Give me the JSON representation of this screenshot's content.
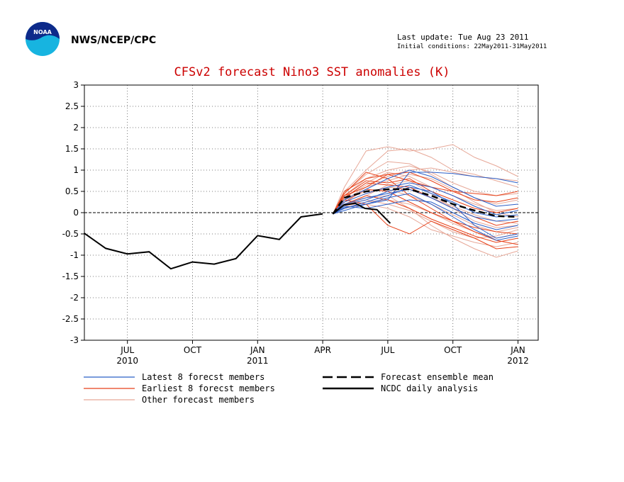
{
  "header": {
    "agency": "NWS/NCEP/CPC",
    "last_update": "Last update: Tue Aug 23 2011",
    "initial_conditions": "Initial conditions: 22May2011-31May2011",
    "logo_text": "NOAA"
  },
  "colors": {
    "latest": "#2b5fc8",
    "earliest": "#e8421a",
    "other": "#e7a898",
    "mean": "#000000",
    "analysis": "#000000",
    "title": "#cc0000"
  },
  "chart_data": {
    "type": "line",
    "title": "CFSv2 forecast Nino3 SST anomalies (K)",
    "ylim": [
      -3,
      3
    ],
    "yticks": [
      "3",
      "2.5",
      "2",
      "1.5",
      "1",
      "0.5",
      "0",
      "-0.5",
      "-1",
      "-1.5",
      "-2",
      "-2.5",
      "-3"
    ],
    "x_range_months": [
      "2010-04",
      "2012-02"
    ],
    "xticks": [
      {
        "month": "JUL",
        "year": "2010",
        "index": 3
      },
      {
        "month": "OCT",
        "year": "",
        "index": 6
      },
      {
        "month": "JAN",
        "year": "2011",
        "index": 9
      },
      {
        "month": "APR",
        "year": "",
        "index": 12
      },
      {
        "month": "JUL",
        "year": "",
        "index": 15
      },
      {
        "month": "OCT",
        "year": "",
        "index": 18
      },
      {
        "month": "JAN",
        "year": "2012",
        "index": 21
      }
    ],
    "grid": true,
    "zero_line": true,
    "legend": [
      {
        "label": "Latest 8 forecst members",
        "key": "latest"
      },
      {
        "label": "Earliest 8 forecst members",
        "key": "earliest"
      },
      {
        "label": "Other forecast members",
        "key": "other"
      },
      {
        "label": "Forecast ensemble mean",
        "key": "mean"
      },
      {
        "label": "NCDC daily analysis",
        "key": "analysis"
      }
    ],
    "analysis_monthly": {
      "name": "NCDC daily analysis",
      "x": [
        "2010-06",
        "2010-07",
        "2010-08",
        "2010-09",
        "2010-10",
        "2010-11",
        "2010-12",
        "2011-01",
        "2011-02",
        "2011-03",
        "2011-04",
        "2011-05"
      ],
      "y": [
        -0.48,
        -0.84,
        -0.97,
        -0.92,
        -1.32,
        -1.16,
        -1.21,
        -1.08,
        -0.54,
        -0.63,
        -0.1,
        -0.03
      ]
    },
    "analysis_daily": {
      "x": [
        "2011-05-31",
        "2011-06-15",
        "2011-07-01",
        "2011-07-15",
        "2011-08-01",
        "2011-08-20"
      ],
      "y": [
        -0.03,
        0.18,
        0.22,
        0.1,
        0.07,
        -0.25
      ]
    },
    "ensemble_mean": {
      "name": "Forecast ensemble mean",
      "x": [
        "2011-05-31",
        "2011-06",
        "2011-07",
        "2011-08",
        "2011-09",
        "2011-10",
        "2011-11",
        "2011-12",
        "2012-01",
        "2012-02"
      ],
      "y": [
        -0.03,
        0.35,
        0.5,
        0.55,
        0.55,
        0.4,
        0.2,
        0.05,
        -0.08,
        -0.1
      ]
    },
    "members_latest": [
      {
        "x": [
          "2011-05-31",
          "2011-06",
          "2011-07",
          "2011-08",
          "2011-09",
          "2011-10",
          "2011-11",
          "2011-12",
          "2012-01",
          "2012-02"
        ],
        "y": [
          -0.03,
          0.12,
          0.2,
          0.3,
          0.95,
          0.95,
          0.92,
          0.85,
          0.8,
          0.7
        ]
      },
      {
        "x": [
          "2011-05-31",
          "2011-06",
          "2011-07",
          "2011-08",
          "2011-09",
          "2011-10",
          "2011-11",
          "2011-12",
          "2012-01",
          "2012-02"
        ],
        "y": [
          -0.03,
          0.1,
          0.25,
          0.4,
          0.6,
          0.5,
          0.2,
          -0.3,
          -0.6,
          -0.5
        ]
      },
      {
        "x": [
          "2011-05-31",
          "2011-06",
          "2011-07",
          "2011-08",
          "2011-09",
          "2011-10",
          "2011-11",
          "2011-12",
          "2012-01",
          "2012-02"
        ],
        "y": [
          -0.03,
          0.2,
          0.35,
          0.45,
          0.55,
          0.35,
          0.1,
          -0.1,
          -0.2,
          -0.15
        ]
      },
      {
        "x": [
          "2011-05-31",
          "2011-06",
          "2011-07",
          "2011-08",
          "2011-09",
          "2011-10",
          "2011-11",
          "2011-12",
          "2012-01",
          "2012-02"
        ],
        "y": [
          -0.03,
          0.15,
          0.1,
          0.2,
          0.3,
          0.25,
          0.0,
          -0.25,
          -0.4,
          -0.3
        ]
      },
      {
        "x": [
          "2011-05-31",
          "2011-06",
          "2011-07",
          "2011-08",
          "2011-09",
          "2011-10",
          "2011-11",
          "2011-12",
          "2012-01",
          "2012-02"
        ],
        "y": [
          -0.03,
          0.25,
          0.45,
          0.6,
          0.7,
          0.6,
          0.4,
          0.15,
          -0.05,
          0.05
        ]
      },
      {
        "x": [
          "2011-05-31",
          "2011-06",
          "2011-07",
          "2011-08",
          "2011-09",
          "2011-10",
          "2011-11",
          "2011-12",
          "2012-01",
          "2012-02"
        ],
        "y": [
          -0.03,
          0.05,
          0.2,
          0.35,
          0.45,
          0.2,
          -0.1,
          -0.4,
          -0.65,
          -0.55
        ]
      },
      {
        "x": [
          "2011-05-31",
          "2011-06",
          "2011-07",
          "2011-08",
          "2011-09",
          "2011-10",
          "2011-11",
          "2011-12",
          "2012-01",
          "2012-02"
        ],
        "y": [
          -0.03,
          0.3,
          0.55,
          0.8,
          1.0,
          0.85,
          0.6,
          0.35,
          0.15,
          0.2
        ]
      },
      {
        "x": [
          "2011-05-31",
          "2011-06",
          "2011-07",
          "2011-08",
          "2011-09",
          "2011-10",
          "2011-11",
          "2011-12",
          "2012-01",
          "2012-02"
        ],
        "y": [
          -0.03,
          0.18,
          0.3,
          0.5,
          0.65,
          0.45,
          0.25,
          0.0,
          -0.1,
          -0.05
        ]
      }
    ],
    "members_earliest": [
      {
        "x": [
          "2011-05-31",
          "2011-06",
          "2011-07",
          "2011-08",
          "2011-09",
          "2011-10",
          "2011-11",
          "2011-12",
          "2012-01",
          "2012-02"
        ],
        "y": [
          -0.03,
          0.45,
          0.95,
          0.8,
          0.4,
          0.1,
          -0.2,
          -0.45,
          -0.65,
          -0.75
        ]
      },
      {
        "x": [
          "2011-05-31",
          "2011-06",
          "2011-07",
          "2011-08",
          "2011-09",
          "2011-10",
          "2011-11",
          "2011-12",
          "2012-01",
          "2012-02"
        ],
        "y": [
          -0.03,
          0.4,
          0.6,
          0.9,
          0.75,
          0.6,
          0.5,
          0.45,
          0.4,
          0.5
        ]
      },
      {
        "x": [
          "2011-05-31",
          "2011-06",
          "2011-07",
          "2011-08",
          "2011-09",
          "2011-10",
          "2011-11",
          "2011-12",
          "2012-01",
          "2012-02"
        ],
        "y": [
          -0.03,
          0.3,
          0.2,
          -0.3,
          -0.5,
          -0.2,
          -0.4,
          -0.6,
          -0.85,
          -0.8
        ]
      },
      {
        "x": [
          "2011-05-31",
          "2011-06",
          "2011-07",
          "2011-08",
          "2011-09",
          "2011-10",
          "2011-11",
          "2011-12",
          "2012-01",
          "2012-02"
        ],
        "y": [
          -0.03,
          0.35,
          0.7,
          0.65,
          0.6,
          0.35,
          0.1,
          -0.1,
          -0.3,
          -0.2
        ]
      },
      {
        "x": [
          "2011-05-31",
          "2011-06",
          "2011-07",
          "2011-08",
          "2011-09",
          "2011-10",
          "2011-11",
          "2011-12",
          "2012-01",
          "2012-02"
        ],
        "y": [
          -0.03,
          0.2,
          0.4,
          0.3,
          0.1,
          -0.15,
          -0.35,
          -0.55,
          -0.7,
          -0.6
        ]
      },
      {
        "x": [
          "2011-05-31",
          "2011-06",
          "2011-07",
          "2011-08",
          "2011-09",
          "2011-10",
          "2011-11",
          "2011-12",
          "2012-01",
          "2012-02"
        ],
        "y": [
          -0.03,
          0.5,
          0.8,
          0.9,
          0.95,
          0.75,
          0.5,
          0.3,
          0.25,
          0.35
        ]
      },
      {
        "x": [
          "2011-05-31",
          "2011-06",
          "2011-07",
          "2011-08",
          "2011-09",
          "2011-10",
          "2011-11",
          "2011-12",
          "2012-01",
          "2012-02"
        ],
        "y": [
          -0.03,
          0.25,
          0.55,
          0.5,
          0.25,
          0.0,
          -0.2,
          -0.35,
          -0.45,
          -0.5
        ]
      },
      {
        "x": [
          "2011-05-31",
          "2011-06",
          "2011-07",
          "2011-08",
          "2011-09",
          "2011-10",
          "2011-11",
          "2011-12",
          "2012-01",
          "2012-02"
        ],
        "y": [
          -0.03,
          0.4,
          0.75,
          0.7,
          0.8,
          0.5,
          0.3,
          0.1,
          0.0,
          0.1
        ]
      }
    ],
    "members_other": [
      {
        "x": [
          "2011-05-31",
          "2011-06",
          "2011-07",
          "2011-08",
          "2011-09",
          "2011-10",
          "2011-11",
          "2011-12",
          "2012-01",
          "2012-02"
        ],
        "y": [
          -0.03,
          0.6,
          1.45,
          1.55,
          1.45,
          1.5,
          1.6,
          1.3,
          1.1,
          0.85
        ]
      },
      {
        "x": [
          "2011-05-31",
          "2011-06",
          "2011-07",
          "2011-08",
          "2011-09",
          "2011-10",
          "2011-11",
          "2011-12",
          "2012-01",
          "2012-02"
        ],
        "y": [
          -0.03,
          0.5,
          1.0,
          1.45,
          1.5,
          1.3,
          1.0,
          0.9,
          0.75,
          0.6
        ]
      },
      {
        "x": [
          "2011-05-31",
          "2011-06",
          "2011-07",
          "2011-08",
          "2011-09",
          "2011-10",
          "2011-11",
          "2011-12",
          "2012-01",
          "2012-02"
        ],
        "y": [
          -0.03,
          0.3,
          0.6,
          0.75,
          0.9,
          0.8,
          0.55,
          0.25,
          0.0,
          -0.1
        ]
      },
      {
        "x": [
          "2011-05-31",
          "2011-06",
          "2011-07",
          "2011-08",
          "2011-09",
          "2011-10",
          "2011-11",
          "2011-12",
          "2012-01",
          "2012-02"
        ],
        "y": [
          -0.03,
          0.2,
          0.35,
          0.4,
          0.1,
          -0.3,
          -0.6,
          -0.85,
          -1.05,
          -0.9
        ]
      },
      {
        "x": [
          "2011-05-31",
          "2011-06",
          "2011-07",
          "2011-08",
          "2011-09",
          "2011-10",
          "2011-11",
          "2011-12",
          "2012-01",
          "2012-02"
        ],
        "y": [
          -0.03,
          0.15,
          0.25,
          0.3,
          0.2,
          0.0,
          -0.25,
          -0.45,
          -0.6,
          -0.5
        ]
      },
      {
        "x": [
          "2011-05-31",
          "2011-06",
          "2011-07",
          "2011-08",
          "2011-09",
          "2011-10",
          "2011-11",
          "2011-12",
          "2012-01",
          "2012-02"
        ],
        "y": [
          -0.03,
          0.35,
          0.65,
          0.85,
          1.0,
          1.05,
          0.95,
          0.85,
          0.8,
          0.75
        ]
      },
      {
        "x": [
          "2011-05-31",
          "2011-06",
          "2011-07",
          "2011-08",
          "2011-09",
          "2011-10",
          "2011-11",
          "2011-12",
          "2012-01",
          "2012-02"
        ],
        "y": [
          -0.03,
          0.1,
          0.2,
          0.1,
          -0.1,
          -0.4,
          -0.55,
          -0.7,
          -0.8,
          -0.7
        ]
      },
      {
        "x": [
          "2011-05-31",
          "2011-06",
          "2011-07",
          "2011-08",
          "2011-09",
          "2011-10",
          "2011-11",
          "2011-12",
          "2012-01",
          "2012-02"
        ],
        "y": [
          -0.03,
          0.4,
          0.8,
          1.0,
          1.1,
          0.95,
          0.7,
          0.5,
          0.4,
          0.45
        ]
      },
      {
        "x": [
          "2011-05-31",
          "2011-06",
          "2011-07",
          "2011-08",
          "2011-09",
          "2011-10",
          "2011-11",
          "2011-12",
          "2012-01",
          "2012-02"
        ],
        "y": [
          -0.03,
          0.25,
          0.45,
          0.6,
          0.55,
          0.35,
          0.15,
          -0.05,
          -0.2,
          -0.25
        ]
      },
      {
        "x": [
          "2011-05-31",
          "2011-06",
          "2011-07",
          "2011-08",
          "2011-09",
          "2011-10",
          "2011-11",
          "2011-12",
          "2012-01",
          "2012-02"
        ],
        "y": [
          -0.03,
          0.3,
          0.5,
          0.55,
          0.4,
          0.2,
          -0.05,
          -0.3,
          -0.45,
          -0.35
        ]
      },
      {
        "x": [
          "2011-05-31",
          "2011-06",
          "2011-07",
          "2011-08",
          "2011-09",
          "2011-10",
          "2011-11",
          "2011-12",
          "2012-01",
          "2012-02"
        ],
        "y": [
          -0.03,
          0.45,
          0.9,
          1.2,
          1.15,
          0.9,
          0.6,
          0.35,
          0.2,
          0.3
        ]
      },
      {
        "x": [
          "2011-05-31",
          "2011-06",
          "2011-07",
          "2011-08",
          "2011-09",
          "2011-10",
          "2011-11",
          "2011-12",
          "2012-01",
          "2012-02"
        ],
        "y": [
          -0.03,
          0.2,
          0.3,
          0.2,
          0.05,
          -0.2,
          -0.45,
          -0.6,
          -0.55,
          -0.4
        ]
      },
      {
        "x": [
          "2011-05-31",
          "2011-06",
          "2011-07",
          "2011-08",
          "2011-09",
          "2011-10",
          "2011-11",
          "2011-12",
          "2012-01",
          "2012-02"
        ],
        "y": [
          -0.03,
          0.35,
          0.7,
          0.95,
          0.85,
          0.6,
          0.4,
          0.2,
          0.05,
          0.1
        ]
      },
      {
        "x": [
          "2011-05-31",
          "2011-06",
          "2011-07",
          "2011-08",
          "2011-09",
          "2011-10",
          "2011-11",
          "2011-12",
          "2012-01",
          "2012-02"
        ],
        "y": [
          -0.03,
          0.15,
          0.4,
          0.65,
          0.75,
          0.45,
          0.1,
          -0.2,
          -0.35,
          -0.3
        ]
      }
    ]
  }
}
